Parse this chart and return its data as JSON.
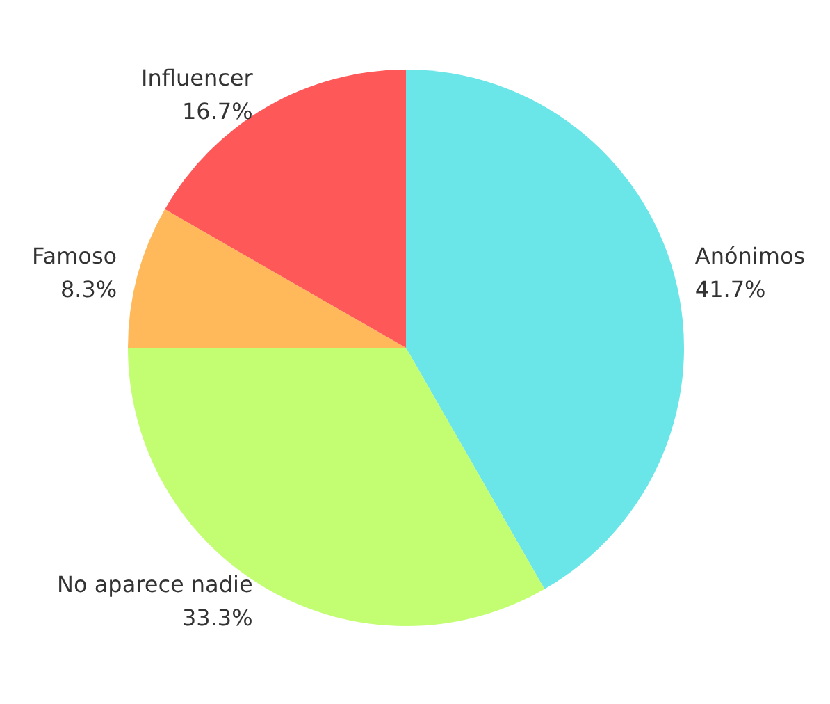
{
  "chart_data": {
    "type": "pie",
    "categories": [
      "Anónimos",
      "No aparece nadie",
      "Famoso",
      "Influencer"
    ],
    "values": [
      41.7,
      33.3,
      8.3,
      16.7
    ],
    "value_labels": [
      "41.7%",
      "33.3%",
      "8.3%",
      "16.7%"
    ],
    "colors": [
      "#6ae5e8",
      "#c2fd72",
      "#ffb95a",
      "#ff5858"
    ],
    "legend": false
  }
}
